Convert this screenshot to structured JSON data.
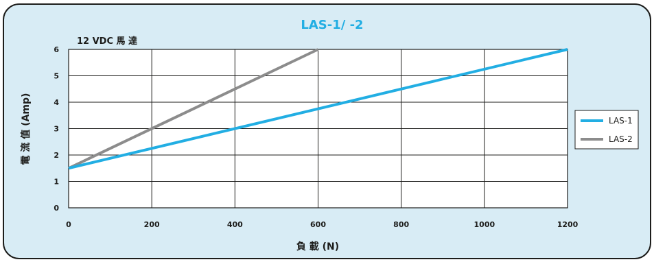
{
  "chart_data": {
    "type": "line",
    "title": "LAS-1/ -2",
    "subtitle": "12 VDC 馬 達",
    "xlabel": "負 載 (N)",
    "ylabel": "電 流 值 (Amp)",
    "xlim": [
      0,
      1200
    ],
    "ylim": [
      0,
      6
    ],
    "xticks": [
      "0",
      "200",
      "400",
      "600",
      "800",
      "1000",
      "1200"
    ],
    "yticks": [
      "0",
      "1",
      "2",
      "3",
      "4",
      "5",
      "6"
    ],
    "grid": true,
    "legend_position": "right",
    "series": [
      {
        "name": "LAS-1",
        "color": "#22aee3",
        "x": [
          0,
          1200
        ],
        "y": [
          1.5,
          6
        ]
      },
      {
        "name": "LAS-2",
        "color": "#8c8c8c",
        "x": [
          0,
          600
        ],
        "y": [
          1.5,
          6
        ]
      }
    ]
  },
  "colors": {
    "panel_bg": "#d8ecf5",
    "title": "#22aee3",
    "grid": "#1d1d1b"
  }
}
